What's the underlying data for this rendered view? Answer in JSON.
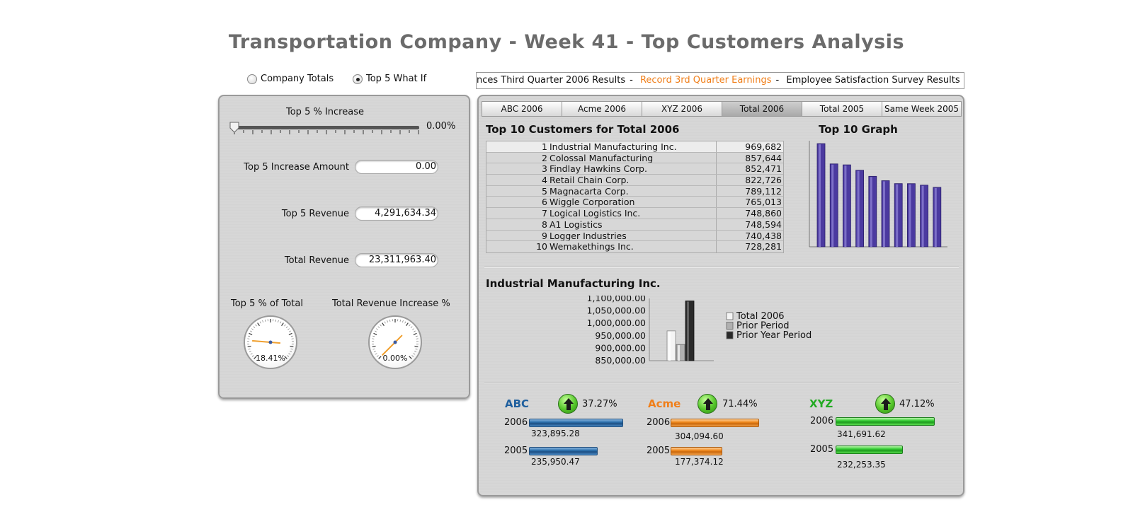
{
  "title": "Transportation Company - Week 41 - Top Customers Analysis",
  "mode_options": [
    {
      "label": "Company Totals",
      "selected": false
    },
    {
      "label": "Top 5 What If",
      "selected": true
    }
  ],
  "ticker": {
    "items": [
      "nces Third Quarter 2006 Results",
      "Record 3rd Quarter Earnings",
      "Employee Satisfaction Survey Results"
    ],
    "highlight_color": "#f07f1a"
  },
  "left": {
    "slider_label": "Top 5 % Increase",
    "slider_value_text": "0.00%",
    "slider_value": 0,
    "fields": [
      {
        "label": "Top 5 Increase Amount",
        "value": "0.00"
      },
      {
        "label": "Top 5 Revenue",
        "value": "4,291,634.34"
      },
      {
        "label": "Total Revenue",
        "value": "23,311,963.40"
      }
    ],
    "gauges": [
      {
        "label": "Top 5 % of Total",
        "value_text": "18.41%",
        "value": 18.41
      },
      {
        "label": "Total Revenue Increase %",
        "value_text": "0.00%",
        "value": 0
      }
    ]
  },
  "tabs": [
    {
      "label": "ABC 2006",
      "active": false
    },
    {
      "label": "Acme 2006",
      "active": false
    },
    {
      "label": "XYZ 2006",
      "active": false
    },
    {
      "label": "Total 2006",
      "active": true
    },
    {
      "label": "Total 2005",
      "active": false
    },
    {
      "label": "Same Week 2005",
      "active": false
    }
  ],
  "top10": {
    "heading": "Top 10 Customers for Total 2006",
    "graph_heading": "Top 10 Graph",
    "rows": [
      {
        "rank": "1",
        "name": "Industrial Manufacturing Inc.",
        "value": "969,682"
      },
      {
        "rank": "2",
        "name": "Colossal Manufacturing",
        "value": "857,644"
      },
      {
        "rank": "3",
        "name": "Findlay Hawkins Corp.",
        "value": "852,471"
      },
      {
        "rank": "4",
        "name": "Retail Chain Corp.",
        "value": "822,726"
      },
      {
        "rank": "5",
        "name": "Magnacarta Corp.",
        "value": "789,112"
      },
      {
        "rank": "6",
        "name": "Wiggle Corporation",
        "value": "765,013"
      },
      {
        "rank": "7",
        "name": "Logical Logistics Inc.",
        "value": "748,860"
      },
      {
        "rank": "8",
        "name": "A1 Logistics",
        "value": "748,594"
      },
      {
        "rank": "9",
        "name": "Logger Industries",
        "value": "740,438"
      },
      {
        "rank": "10",
        "name": "Wemakethings Inc.",
        "value": "728,281"
      }
    ]
  },
  "chart_data": [
    {
      "type": "bar",
      "categories": [
        "1",
        "2",
        "3",
        "4",
        "5",
        "6",
        "7",
        "8",
        "9",
        "10"
      ],
      "values": [
        969682,
        857644,
        852471,
        822726,
        789112,
        765013,
        748860,
        748594,
        740438,
        728281
      ],
      "ylim": [
        400000,
        970000
      ],
      "color": "#4b3aa0",
      "title": "Top 10 Graph"
    },
    {
      "type": "bar",
      "title": "Industrial Manufacturing Inc.",
      "categories": [
        ""
      ],
      "series": [
        {
          "name": "Total 2006",
          "values": [
            969682
          ]
        },
        {
          "name": "Prior Period",
          "values": [
            915000
          ]
        },
        {
          "name": "Prior Year Period",
          "values": [
            1090000
          ]
        }
      ],
      "yticks": [
        "1,100,000.00",
        "1,050,000.00",
        "1,000,000.00",
        "950,000.00",
        "900,000.00",
        "850,000.00"
      ],
      "ylim": [
        850000,
        1100000
      ],
      "legend": "right"
    }
  ],
  "companies": [
    {
      "name": "ABC",
      "color": "#1f5f9e",
      "pct": "37.27%",
      "y2006": "2006",
      "amt2006": "323,895.28",
      "v2006": 323895.28,
      "y2005": "2005",
      "amt2005": "235,950.47",
      "v2005": 235950.47,
      "bar": "blue"
    },
    {
      "name": "Acme",
      "color": "#f07f1a",
      "pct": "71.44%",
      "y2006": "2006",
      "amt2006": "304,094.60",
      "v2006": 304094.6,
      "y2005": "2005",
      "amt2005": "177,374.12",
      "v2005": 177374.12,
      "bar": "orange"
    },
    {
      "name": "XYZ",
      "color": "#22aa22",
      "pct": "47.12%",
      "y2006": "2006",
      "amt2006": "341,691.62",
      "v2006": 341691.62,
      "y2005": "2005",
      "amt2005": "232,253.35",
      "v2005": 232253.35,
      "bar": "green"
    }
  ]
}
